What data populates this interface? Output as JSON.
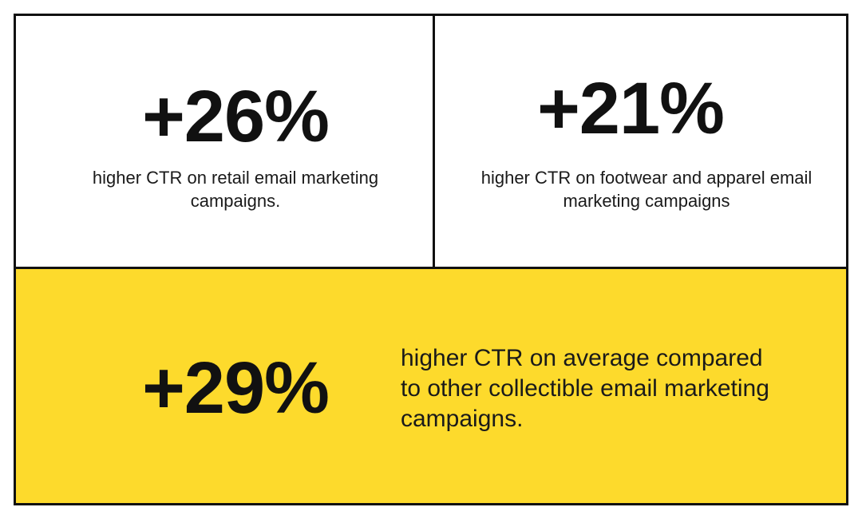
{
  "cards": [
    {
      "stat": "+26%",
      "description": "higher CTR on retail email marketing campaigns."
    },
    {
      "stat": "+21%",
      "description": "higher CTR on footwear and apparel email marketing campaigns"
    },
    {
      "stat": "+29%",
      "description": "higher CTR on average compared to other collectible email marketing campaigns."
    }
  ]
}
